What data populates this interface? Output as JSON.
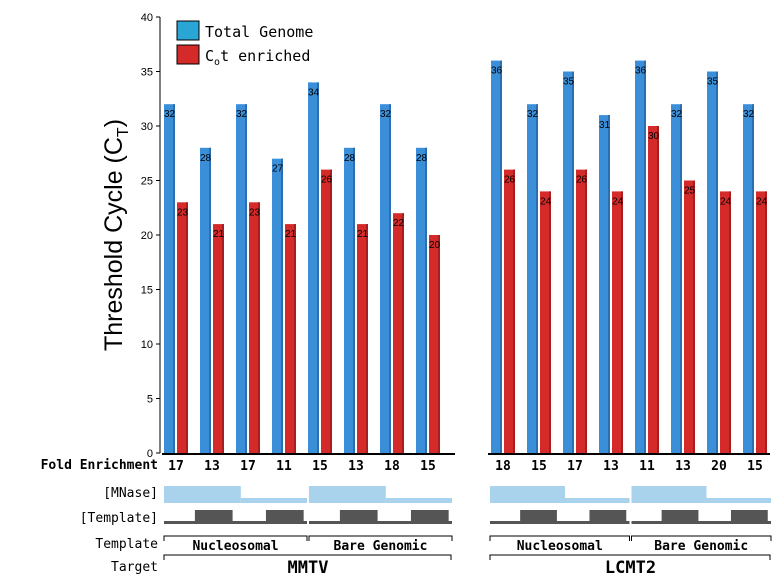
{
  "chart_data": {
    "type": "bar",
    "ylabel": "Threshold Cycle (C",
    "ylabel_sub": "T",
    "ylabel_close": ")",
    "ylim": [
      0,
      40
    ],
    "yticks": [
      0,
      5,
      10,
      15,
      20,
      25,
      30,
      35,
      40
    ],
    "legend": {
      "placement": "top-left",
      "entries": [
        {
          "name": "Total Genome",
          "color": "#3a8fd8",
          "swatch": "#2aa6d6"
        },
        {
          "name_main": "C",
          "name_sub": "o",
          "name_rest": "t enriched",
          "color": "#d42a2a"
        }
      ]
    },
    "groups": [
      {
        "target": "MMTV",
        "series": [
          {
            "name": "Total Genome",
            "values": [
              32,
              28,
              32,
              27,
              34,
              28,
              32,
              28
            ]
          },
          {
            "name": "Cot enriched",
            "values": [
              23,
              21,
              23,
              21,
              26,
              21,
              22,
              20
            ]
          }
        ],
        "fold_enrichment": [
          "17",
          "13",
          "17",
          "11",
          "15",
          "13",
          "18",
          "15"
        ],
        "templates": [
          "Nucleosomal",
          "Bare Genomic"
        ]
      },
      {
        "target": "LCMT2",
        "series": [
          {
            "name": "Total Genome",
            "values": [
              36,
              32,
              35,
              31,
              36,
              32,
              35,
              32
            ]
          },
          {
            "name": "Cot enriched",
            "values": [
              26,
              24,
              26,
              24,
              30,
              25,
              24,
              24
            ]
          }
        ],
        "fold_enrichment": [
          "18",
          "15",
          "17",
          "13",
          "11",
          "13",
          "20",
          "15"
        ],
        "templates": [
          "Nucleosomal",
          "Bare Genomic"
        ]
      }
    ],
    "row_labels": {
      "fold": "Fold Enrichment",
      "mnase": "[MNase]",
      "template_bar": "[Template]",
      "template": "Template",
      "target": "Target"
    },
    "colors": {
      "blue": "#3a8fd8",
      "blue_dark": "#2c6fb0",
      "red": "#d42a2a",
      "red_dark": "#a81e1e",
      "mnase": "#a9d3ec",
      "template_block": "#555555"
    }
  }
}
